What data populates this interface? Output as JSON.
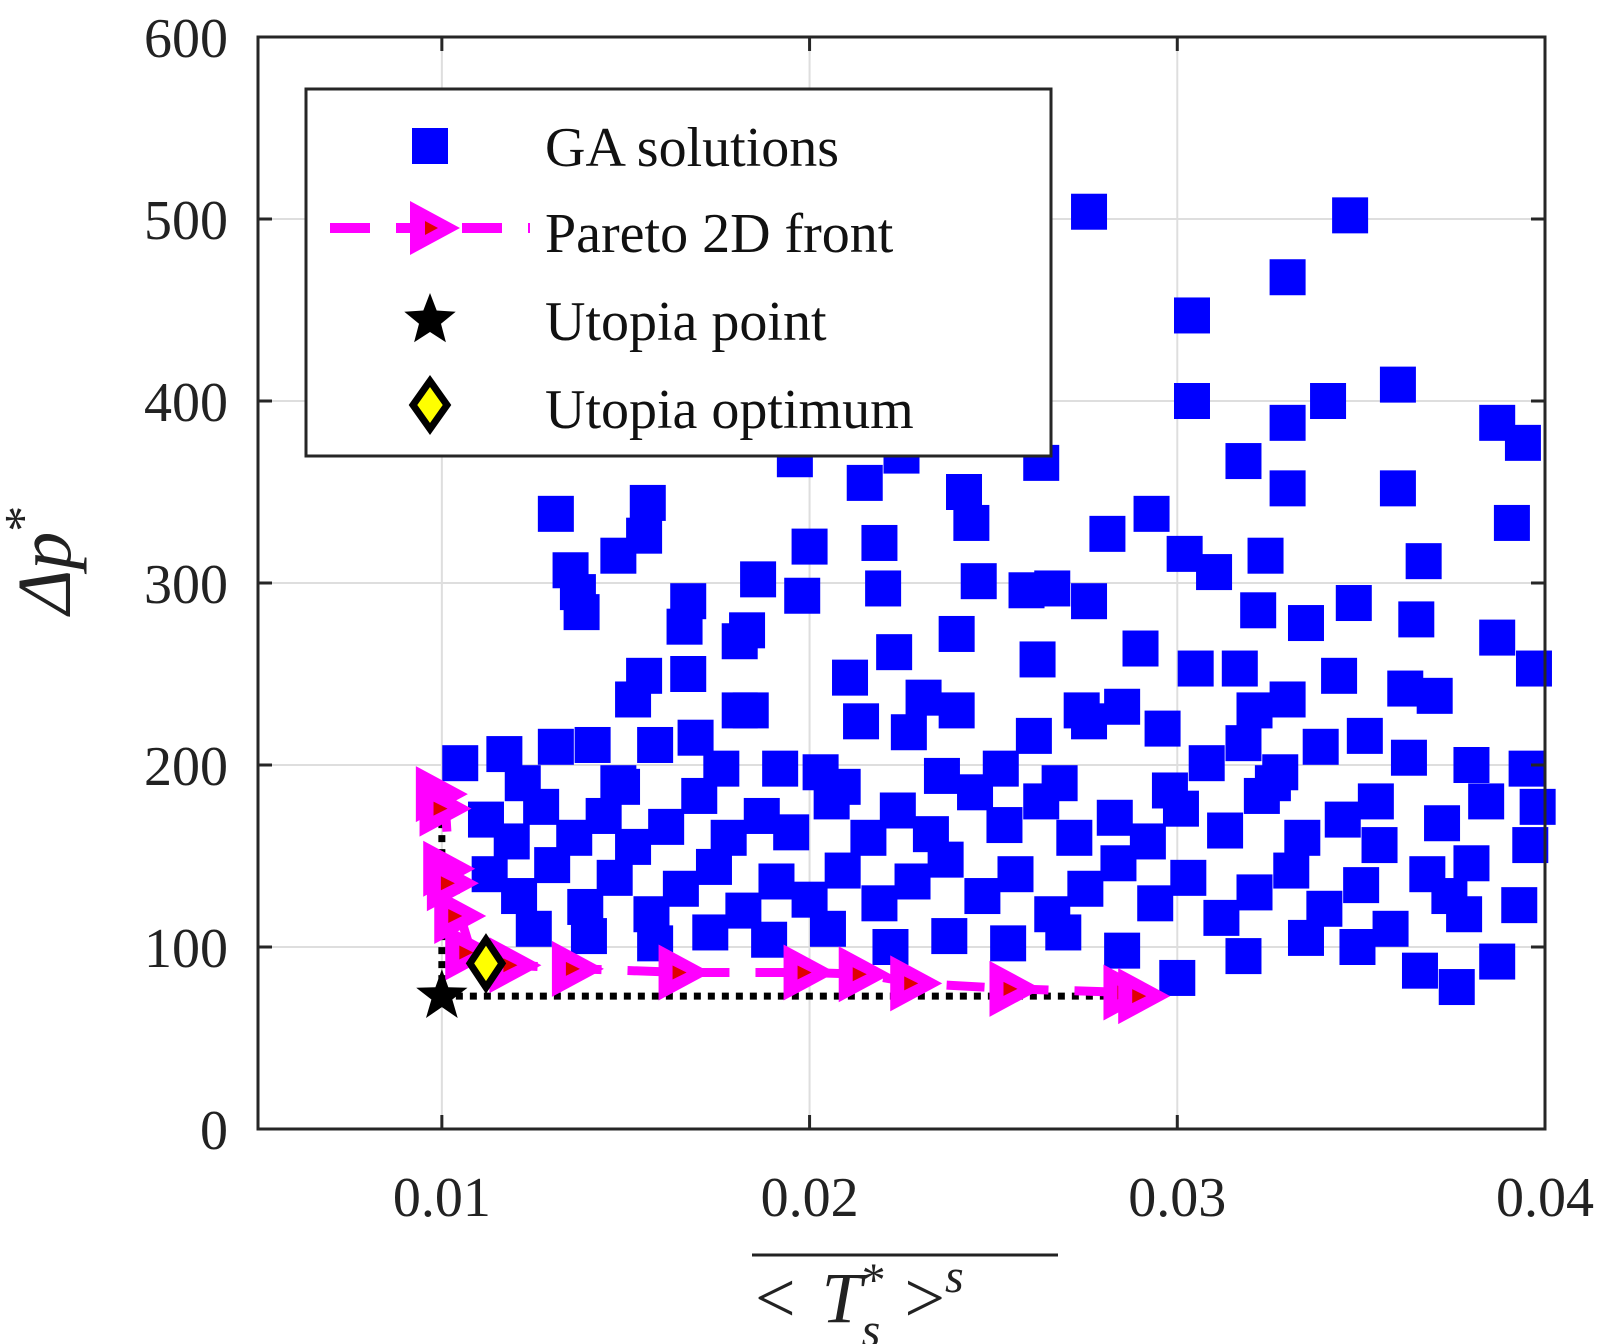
{
  "chart_data": {
    "type": "scatter",
    "title": "",
    "xlabel": {
      "parts": [
        "< ",
        "T",
        "*",
        "s",
        " >",
        "s"
      ],
      "overbar": true
    },
    "ylabel": {
      "delta": "Δ",
      "var": "p",
      "sup": "*"
    },
    "xlim": [
      0.005,
      0.04
    ],
    "ylim": [
      0,
      600
    ],
    "xticks": [
      0.01,
      0.02,
      0.03,
      0.04
    ],
    "xtick_labels": [
      "0.01",
      "0.02",
      "0.03",
      "0.04"
    ],
    "yticks": [
      0,
      100,
      200,
      300,
      400,
      500,
      600
    ],
    "ytick_labels": [
      "0",
      "100",
      "200",
      "300",
      "400",
      "500",
      "600"
    ],
    "grid": true,
    "legend_position": "top-left",
    "colors": {
      "ga": "#0000ff",
      "pareto": "#ff00ff",
      "pareto_inner": "#e00000",
      "utopia_point": "#000000",
      "utopia_optimum": "#ffff00"
    },
    "series": [
      {
        "name": "GA solutions",
        "type": "scatter",
        "marker": "square",
        "points": [
          [
            0.0276,
            504
          ],
          [
            0.0347,
            502
          ],
          [
            0.033,
            468
          ],
          [
            0.0304,
            447
          ],
          [
            0.0304,
            400
          ],
          [
            0.0341,
            400
          ],
          [
            0.036,
            409
          ],
          [
            0.033,
            388
          ],
          [
            0.0387,
            388
          ],
          [
            0.0394,
            377
          ],
          [
            0.0196,
            368
          ],
          [
            0.0225,
            370
          ],
          [
            0.0263,
            366
          ],
          [
            0.0242,
            350
          ],
          [
            0.0318,
            367
          ],
          [
            0.033,
            352
          ],
          [
            0.036,
            352
          ],
          [
            0.0302,
            316
          ],
          [
            0.0215,
            355
          ],
          [
            0.0244,
            333
          ],
          [
            0.0131,
            338
          ],
          [
            0.0156,
            344
          ],
          [
            0.0155,
            326
          ],
          [
            0.02,
            320
          ],
          [
            0.0219,
            322
          ],
          [
            0.0281,
            327
          ],
          [
            0.0293,
            338
          ],
          [
            0.0324,
            315
          ],
          [
            0.0391,
            333
          ],
          [
            0.0367,
            312
          ],
          [
            0.0135,
            307
          ],
          [
            0.0137,
            295
          ],
          [
            0.0138,
            284
          ],
          [
            0.0148,
            315
          ],
          [
            0.0167,
            290
          ],
          [
            0.0166,
            276
          ],
          [
            0.0186,
            302
          ],
          [
            0.0198,
            293
          ],
          [
            0.022,
            297
          ],
          [
            0.0246,
            301
          ],
          [
            0.0259,
            296
          ],
          [
            0.0266,
            297
          ],
          [
            0.0276,
            290
          ],
          [
            0.031,
            306
          ],
          [
            0.0322,
            285
          ],
          [
            0.0335,
            278
          ],
          [
            0.0348,
            289
          ],
          [
            0.0365,
            280
          ],
          [
            0.0387,
            270
          ],
          [
            0.0397,
            253
          ],
          [
            0.0155,
            249
          ],
          [
            0.0152,
            236
          ],
          [
            0.0167,
            250
          ],
          [
            0.0181,
            268
          ],
          [
            0.0183,
            274
          ],
          [
            0.0211,
            248
          ],
          [
            0.0223,
            262
          ],
          [
            0.024,
            272
          ],
          [
            0.0262,
            258
          ],
          [
            0.029,
            264
          ],
          [
            0.0305,
            253
          ],
          [
            0.0317,
            253
          ],
          [
            0.033,
            236
          ],
          [
            0.0344,
            249
          ],
          [
            0.0362,
            242
          ],
          [
            0.037,
            238
          ],
          [
            0.038,
            200
          ],
          [
            0.0395,
            198
          ],
          [
            0.0398,
            177
          ],
          [
            0.0396,
            156
          ],
          [
            0.0105,
            201
          ],
          [
            0.0117,
            206
          ],
          [
            0.0122,
            190
          ],
          [
            0.0131,
            210
          ],
          [
            0.0141,
            211
          ],
          [
            0.0149,
            188
          ],
          [
            0.0158,
            211
          ],
          [
            0.0169,
            215
          ],
          [
            0.0181,
            230
          ],
          [
            0.0192,
            198
          ],
          [
            0.0203,
            196
          ],
          [
            0.0214,
            224
          ],
          [
            0.0227,
            218
          ],
          [
            0.024,
            230
          ],
          [
            0.0252,
            198
          ],
          [
            0.0261,
            216
          ],
          [
            0.0274,
            230
          ],
          [
            0.0285,
            232
          ],
          [
            0.0296,
            220
          ],
          [
            0.0308,
            201
          ],
          [
            0.0318,
            212
          ],
          [
            0.0328,
            196
          ],
          [
            0.0339,
            210
          ],
          [
            0.0351,
            216
          ],
          [
            0.0363,
            204
          ],
          [
            0.0372,
            168
          ],
          [
            0.0384,
            180
          ],
          [
            0.0393,
            123
          ],
          [
            0.0378,
            118
          ],
          [
            0.0366,
            87
          ],
          [
            0.0112,
            170
          ],
          [
            0.0119,
            158
          ],
          [
            0.0127,
            177
          ],
          [
            0.0136,
            160
          ],
          [
            0.0144,
            172
          ],
          [
            0.0152,
            155
          ],
          [
            0.0161,
            166
          ],
          [
            0.017,
            183
          ],
          [
            0.0178,
            160
          ],
          [
            0.0187,
            172
          ],
          [
            0.0195,
            163
          ],
          [
            0.0206,
            180
          ],
          [
            0.0216,
            160
          ],
          [
            0.0224,
            175
          ],
          [
            0.0233,
            162
          ],
          [
            0.0245,
            185
          ],
          [
            0.0253,
            167
          ],
          [
            0.0263,
            180
          ],
          [
            0.0272,
            160
          ],
          [
            0.0283,
            171
          ],
          [
            0.0292,
            158
          ],
          [
            0.0301,
            176
          ],
          [
            0.0313,
            164
          ],
          [
            0.0323,
            183
          ],
          [
            0.0334,
            160
          ],
          [
            0.0345,
            170
          ],
          [
            0.0355,
            156
          ],
          [
            0.0368,
            140
          ],
          [
            0.038,
            146
          ],
          [
            0.0387,
            92
          ],
          [
            0.0113,
            140
          ],
          [
            0.0121,
            128
          ],
          [
            0.013,
            145
          ],
          [
            0.0139,
            122
          ],
          [
            0.0147,
            138
          ],
          [
            0.0157,
            118
          ],
          [
            0.0165,
            132
          ],
          [
            0.0174,
            144
          ],
          [
            0.0182,
            120
          ],
          [
            0.0191,
            136
          ],
          [
            0.02,
            126
          ],
          [
            0.0209,
            142
          ],
          [
            0.0219,
            124
          ],
          [
            0.0228,
            136
          ],
          [
            0.0237,
            148
          ],
          [
            0.0247,
            128
          ],
          [
            0.0256,
            140
          ],
          [
            0.0266,
            118
          ],
          [
            0.0275,
            132
          ],
          [
            0.0284,
            146
          ],
          [
            0.0294,
            124
          ],
          [
            0.0303,
            138
          ],
          [
            0.0312,
            116
          ],
          [
            0.0321,
            130
          ],
          [
            0.0331,
            142
          ],
          [
            0.034,
            121
          ],
          [
            0.035,
            134
          ],
          [
            0.0358,
            110
          ],
          [
            0.0374,
            128
          ],
          [
            0.0376,
            78
          ],
          [
            0.0125,
            110
          ],
          [
            0.014,
            106
          ],
          [
            0.0158,
            102
          ],
          [
            0.0173,
            108
          ],
          [
            0.0189,
            104
          ],
          [
            0.0205,
            110
          ],
          [
            0.0222,
            100
          ],
          [
            0.0238,
            106
          ],
          [
            0.0254,
            102
          ],
          [
            0.0269,
            108
          ],
          [
            0.0285,
            98
          ],
          [
            0.03,
            83
          ],
          [
            0.0318,
            95
          ],
          [
            0.0335,
            105
          ],
          [
            0.0349,
            100
          ],
          [
            0.0148,
            190
          ],
          [
            0.0176,
            198
          ],
          [
            0.0209,
            188
          ],
          [
            0.0236,
            194
          ],
          [
            0.0268,
            190
          ],
          [
            0.0298,
            186
          ],
          [
            0.0326,
            190
          ],
          [
            0.0354,
            180
          ],
          [
            0.0184,
            230
          ],
          [
            0.0231,
            237
          ],
          [
            0.0276,
            224
          ],
          [
            0.0321,
            230
          ]
        ]
      },
      {
        "name": "Pareto 2D front",
        "type": "line",
        "marker": "triangle-right",
        "line_style": "dashed",
        "points": [
          [
            0.01,
            184
          ],
          [
            0.0101,
            176
          ],
          [
            0.0102,
            143
          ],
          [
            0.0103,
            135
          ],
          [
            0.0105,
            117
          ],
          [
            0.0108,
            97
          ],
          [
            0.012,
            90
          ],
          [
            0.0137,
            88
          ],
          [
            0.0166,
            86
          ],
          [
            0.02,
            86
          ],
          [
            0.0215,
            85
          ],
          [
            0.0229,
            80
          ],
          [
            0.0256,
            77
          ],
          [
            0.0287,
            75
          ],
          [
            0.0291,
            73
          ]
        ]
      },
      {
        "name": "Utopia point",
        "type": "scatter",
        "marker": "star",
        "points": [
          [
            0.01,
            73
          ]
        ]
      },
      {
        "name": "Utopia optimum",
        "type": "scatter",
        "marker": "diamond",
        "points": [
          [
            0.0112,
            91
          ]
        ]
      }
    ]
  }
}
